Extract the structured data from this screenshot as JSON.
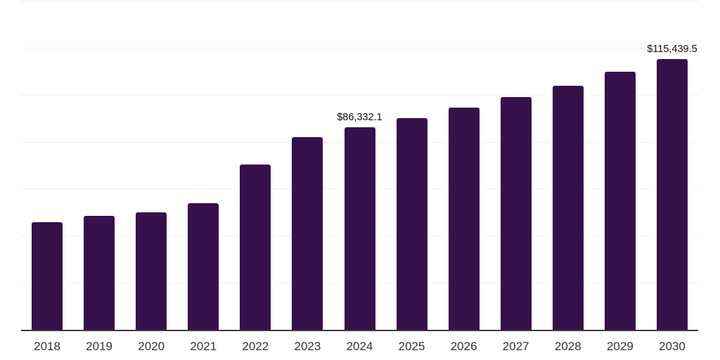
{
  "chart_data": {
    "type": "bar",
    "title": "",
    "xlabel": "",
    "ylabel": "",
    "categories": [
      "2018",
      "2019",
      "2020",
      "2021",
      "2022",
      "2023",
      "2024",
      "2025",
      "2026",
      "2027",
      "2028",
      "2029",
      "2030"
    ],
    "values": [
      45800,
      48600,
      50100,
      54000,
      70300,
      82000,
      86332.1,
      90200,
      94800,
      99300,
      104100,
      109800,
      115439.5
    ],
    "value_labels": [
      {
        "category": "2024",
        "text": "$86,332.1"
      },
      {
        "category": "2030",
        "text": "$115,439.5"
      }
    ],
    "ylim": [
      0,
      140000
    ],
    "grid_step": 20000,
    "grid": true,
    "legend": false,
    "y_tick_labels_visible": false,
    "colors": {
      "bar": "#36104a",
      "gridline": "#f0f0f0",
      "axis_line": "#3b3b3b",
      "tick_label": "#333333",
      "value_label": "#111111"
    }
  }
}
